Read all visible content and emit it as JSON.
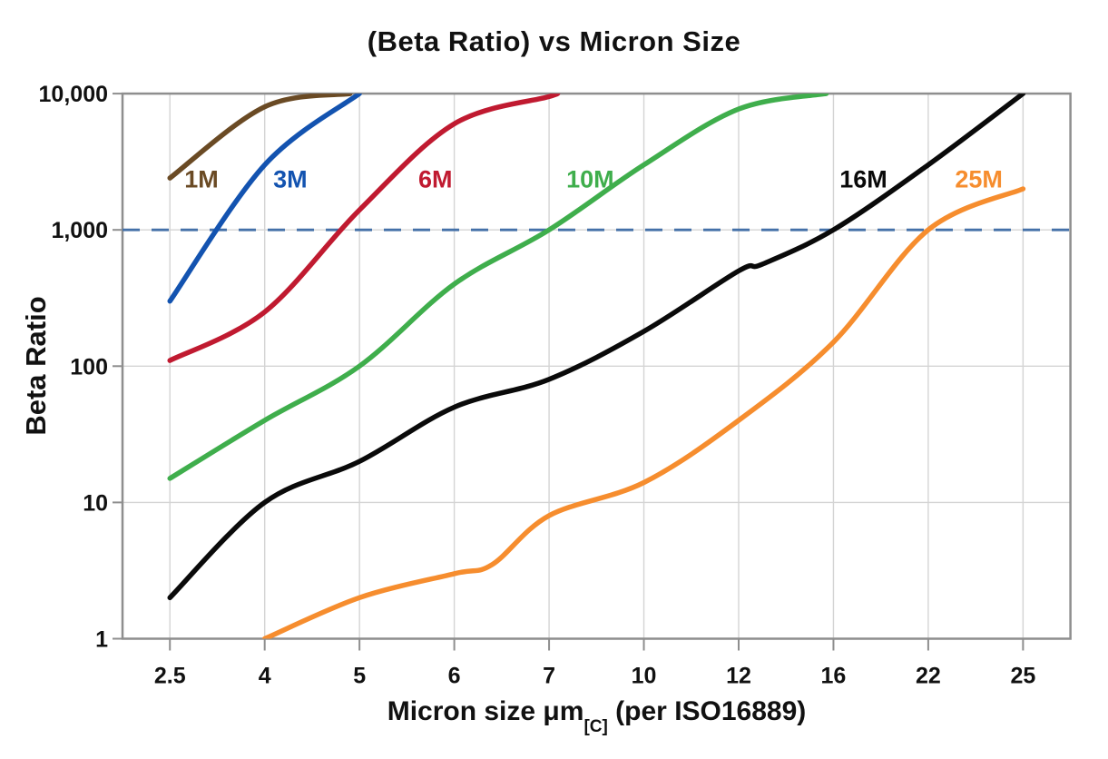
{
  "chart": {
    "title": "(Beta Ratio) vs Micron Size",
    "y_axis": {
      "title": "Beta Ratio",
      "scale": "log",
      "range": [
        1,
        10000
      ],
      "tick_labels": [
        "10,000",
        "1,000",
        "100",
        "10",
        "1"
      ],
      "tick_values": [
        10000,
        1000,
        100,
        10,
        1
      ]
    },
    "x_axis": {
      "title_main": "Micron size μm",
      "title_sub": "[C]",
      "title_suffix": " (per ISO16889)",
      "tick_labels": [
        "2.5",
        "4",
        "5",
        "6",
        "7",
        "10",
        "12",
        "16",
        "22",
        "25"
      ],
      "tick_values": [
        2.5,
        4,
        5,
        6,
        7,
        10,
        12,
        16,
        22,
        25
      ]
    },
    "colors": {
      "frame": "#8e8e8e",
      "gridline": "#d4d4d4",
      "threshold": "#4470a8",
      "text": "#111111"
    }
  },
  "chart_data": {
    "type": "line",
    "title": "(Beta Ratio) vs Micron Size",
    "xlabel": "Micron size μm[C] (per ISO16889)",
    "ylabel": "Beta Ratio",
    "x_scale": "ordinal-categories",
    "y_scale": "log",
    "ylim": [
      1,
      10000
    ],
    "grid": true,
    "categories": [
      2.5,
      4,
      5,
      6,
      7,
      10,
      12,
      16,
      22,
      25
    ],
    "reference_line": {
      "y": 1000,
      "style": "dashed",
      "color": "#4470a8"
    },
    "legend_position": "inline-labels",
    "series": [
      {
        "name": "1M",
        "color": "#6a4a24",
        "label_at": {
          "x": 3.0,
          "y": 2350
        },
        "points": [
          [
            2.5,
            2400
          ],
          [
            4,
            8000
          ],
          [
            4.9,
            10000
          ]
        ]
      },
      {
        "name": "3M",
        "color": "#1353b0",
        "label_at": {
          "x": 4.27,
          "y": 2350
        },
        "points": [
          [
            2.5,
            300
          ],
          [
            4,
            3000
          ],
          [
            5,
            10000
          ]
        ]
      },
      {
        "name": "6M",
        "color": "#c01a30",
        "label_at": {
          "x": 5.8,
          "y": 2350
        },
        "points": [
          [
            2.5,
            110
          ],
          [
            4,
            250
          ],
          [
            5,
            1400
          ],
          [
            6,
            6000
          ],
          [
            7,
            9500
          ],
          [
            7.15,
            10000
          ]
        ]
      },
      {
        "name": "10M",
        "color": "#3fae4c",
        "label_at": {
          "x": 8.3,
          "y": 2350
        },
        "points": [
          [
            2.5,
            15
          ],
          [
            4,
            40
          ],
          [
            5,
            100
          ],
          [
            6,
            400
          ],
          [
            7,
            1000
          ],
          [
            10,
            3000
          ],
          [
            12,
            7700
          ],
          [
            15.7,
            10000
          ]
        ]
      },
      {
        "name": "16M",
        "color": "#0a0a0a",
        "label_at": {
          "x": 17.9,
          "y": 2350
        },
        "points": [
          [
            2.5,
            2
          ],
          [
            4,
            10
          ],
          [
            5,
            20
          ],
          [
            6,
            50
          ],
          [
            7,
            80
          ],
          [
            10,
            180
          ],
          [
            12,
            500
          ],
          [
            13,
            560
          ],
          [
            16,
            1000
          ],
          [
            22,
            3000
          ],
          [
            25,
            10000
          ]
        ]
      },
      {
        "name": "25M",
        "color": "#f68d2e",
        "label_at": {
          "x": 23.6,
          "y": 2350
        },
        "points": [
          [
            4,
            1
          ],
          [
            5,
            2
          ],
          [
            6,
            3
          ],
          [
            6.4,
            3.5
          ],
          [
            7,
            8
          ],
          [
            10,
            14
          ],
          [
            12,
            40
          ],
          [
            16,
            150
          ],
          [
            22,
            1000
          ],
          [
            25,
            2000
          ]
        ]
      }
    ]
  }
}
